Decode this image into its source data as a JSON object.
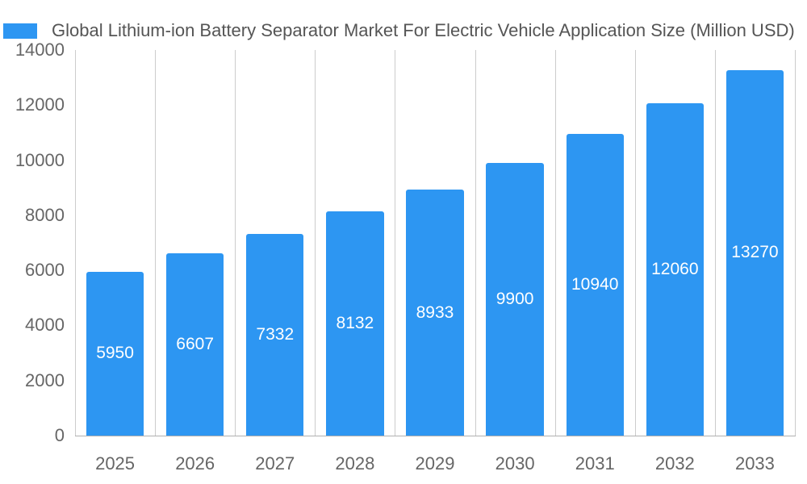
{
  "chart_data": {
    "type": "bar",
    "title": "Global Lithium-ion Battery Separator Market For Electric Vehicle Application Size (Million USD)",
    "categories": [
      "2025",
      "2026",
      "2027",
      "2028",
      "2029",
      "2030",
      "2031",
      "2032",
      "2033"
    ],
    "values": [
      5950,
      6607,
      7332,
      8132,
      8933,
      9900,
      10940,
      12060,
      13270
    ],
    "xlabel": "",
    "ylabel": "",
    "ylim": [
      0,
      14000
    ],
    "yticks": [
      0,
      2000,
      4000,
      6000,
      8000,
      10000,
      12000,
      14000
    ],
    "grid": "vertical",
    "legend_position": "top-left",
    "bar_color": "#2d96f2",
    "value_label_color": "#ffffff",
    "axis_text_color": "#666666",
    "title_text_color": "#555555"
  }
}
